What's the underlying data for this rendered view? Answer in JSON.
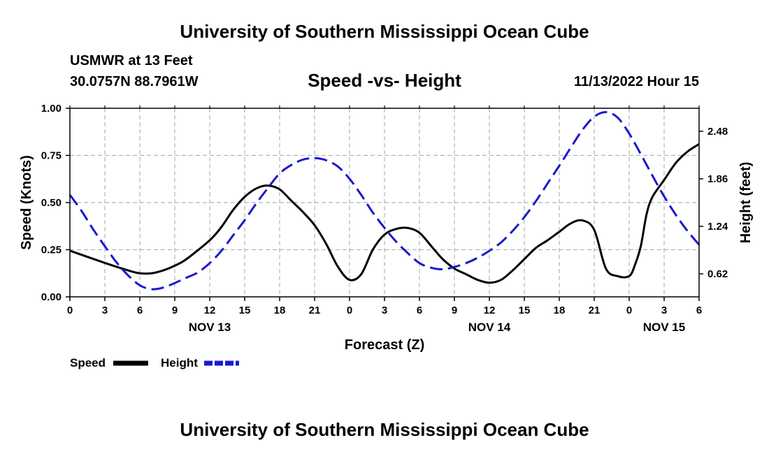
{
  "header": {
    "title": "University of Southern Mississippi Ocean Cube",
    "station": "USMWR at 13 Feet",
    "coords": "30.0757N  88.7961W",
    "run_time": "11/13/2022 Hour 15"
  },
  "footer": {
    "title": "University of Southern Mississippi Ocean Cube"
  },
  "colors": {
    "speed": "#000000",
    "height": "#1a1acc",
    "grid": "#b4b4b4"
  },
  "chart_data": {
    "type": "line",
    "title": "Speed -vs- Height",
    "xlabel": "Forecast (Z)",
    "ylabel": "Speed (Knots)",
    "y2label": "Height (feet)",
    "x_unit": "forecast hours from Nov 13 00Z",
    "xlim": [
      0,
      54
    ],
    "ylim": [
      0,
      1
    ],
    "y2lim": [
      0.32,
      2.78
    ],
    "x_ticks": [
      0,
      3,
      6,
      9,
      12,
      15,
      18,
      21,
      24,
      27,
      30,
      33,
      36,
      39,
      42,
      45,
      48,
      51,
      54
    ],
    "x_tick_labels": [
      "0",
      "3",
      "6",
      "9",
      "12",
      "15",
      "18",
      "21",
      "0",
      "3",
      "6",
      "9",
      "12",
      "15",
      "18",
      "21",
      "0",
      "3",
      "6"
    ],
    "date_labels": [
      {
        "x": 12,
        "label": "NOV 13"
      },
      {
        "x": 36,
        "label": "NOV 14"
      },
      {
        "x": 51,
        "label": "NOV 15"
      }
    ],
    "y_ticks": [
      0,
      0.25,
      0.5,
      0.75,
      1.0
    ],
    "y_tick_labels": [
      "0.00",
      "0.25",
      "0.50",
      "0.75",
      "1.00"
    ],
    "y2_ticks": [
      0.62,
      1.24,
      1.86,
      2.48
    ],
    "y2_tick_labels": [
      "0.62",
      "1.24",
      "1.86",
      "2.48"
    ],
    "grid": true,
    "legend_position": "bottom-left",
    "series": [
      {
        "name": "Speed",
        "axis": "left",
        "style": "solid",
        "x": [
          0,
          3,
          5,
          6,
          7,
          8,
          9,
          10,
          12,
          13,
          14,
          15,
          16,
          17,
          18,
          19,
          20,
          21,
          22,
          23,
          24,
          25,
          26,
          27,
          28,
          29,
          30,
          31,
          32,
          33,
          34,
          35,
          36,
          37,
          38,
          39,
          40,
          41,
          42,
          43,
          44,
          45,
          46,
          47,
          48,
          48.5,
          49,
          49.5,
          50,
          51,
          52,
          53,
          54
        ],
        "values": [
          0.245,
          0.18,
          0.14,
          0.125,
          0.125,
          0.14,
          0.165,
          0.2,
          0.3,
          0.37,
          0.46,
          0.53,
          0.575,
          0.59,
          0.57,
          0.51,
          0.45,
          0.38,
          0.28,
          0.16,
          0.09,
          0.12,
          0.25,
          0.33,
          0.36,
          0.365,
          0.34,
          0.27,
          0.2,
          0.15,
          0.12,
          0.09,
          0.075,
          0.09,
          0.14,
          0.2,
          0.26,
          0.3,
          0.345,
          0.39,
          0.405,
          0.355,
          0.15,
          0.11,
          0.11,
          0.17,
          0.27,
          0.44,
          0.53,
          0.62,
          0.71,
          0.77,
          0.81
        ]
      },
      {
        "name": "Height",
        "axis": "right",
        "style": "dashed",
        "x": [
          0,
          1,
          2,
          3,
          4,
          5,
          6,
          7,
          8,
          9,
          10,
          11,
          12,
          13,
          14,
          15,
          16,
          17,
          18,
          19,
          20,
          21,
          22,
          23,
          24,
          25,
          26,
          27,
          28,
          29,
          30,
          31,
          32,
          33,
          34,
          35,
          36,
          37,
          38,
          39,
          40,
          41,
          42,
          43,
          44,
          45,
          46,
          47,
          48,
          49,
          50,
          51,
          52,
          53,
          54
        ],
        "values": [
          1.65,
          1.44,
          1.2,
          0.98,
          0.77,
          0.6,
          0.47,
          0.42,
          0.44,
          0.5,
          0.57,
          0.64,
          0.76,
          0.92,
          1.12,
          1.32,
          1.54,
          1.74,
          1.93,
          2.04,
          2.11,
          2.13,
          2.1,
          2.02,
          1.86,
          1.65,
          1.42,
          1.22,
          1.04,
          0.89,
          0.76,
          0.7,
          0.68,
          0.71,
          0.76,
          0.83,
          0.92,
          1.03,
          1.18,
          1.36,
          1.57,
          1.8,
          2.03,
          2.27,
          2.5,
          2.67,
          2.73,
          2.66,
          2.45,
          2.18,
          1.9,
          1.63,
          1.39,
          1.18,
          1.0
        ]
      }
    ]
  }
}
